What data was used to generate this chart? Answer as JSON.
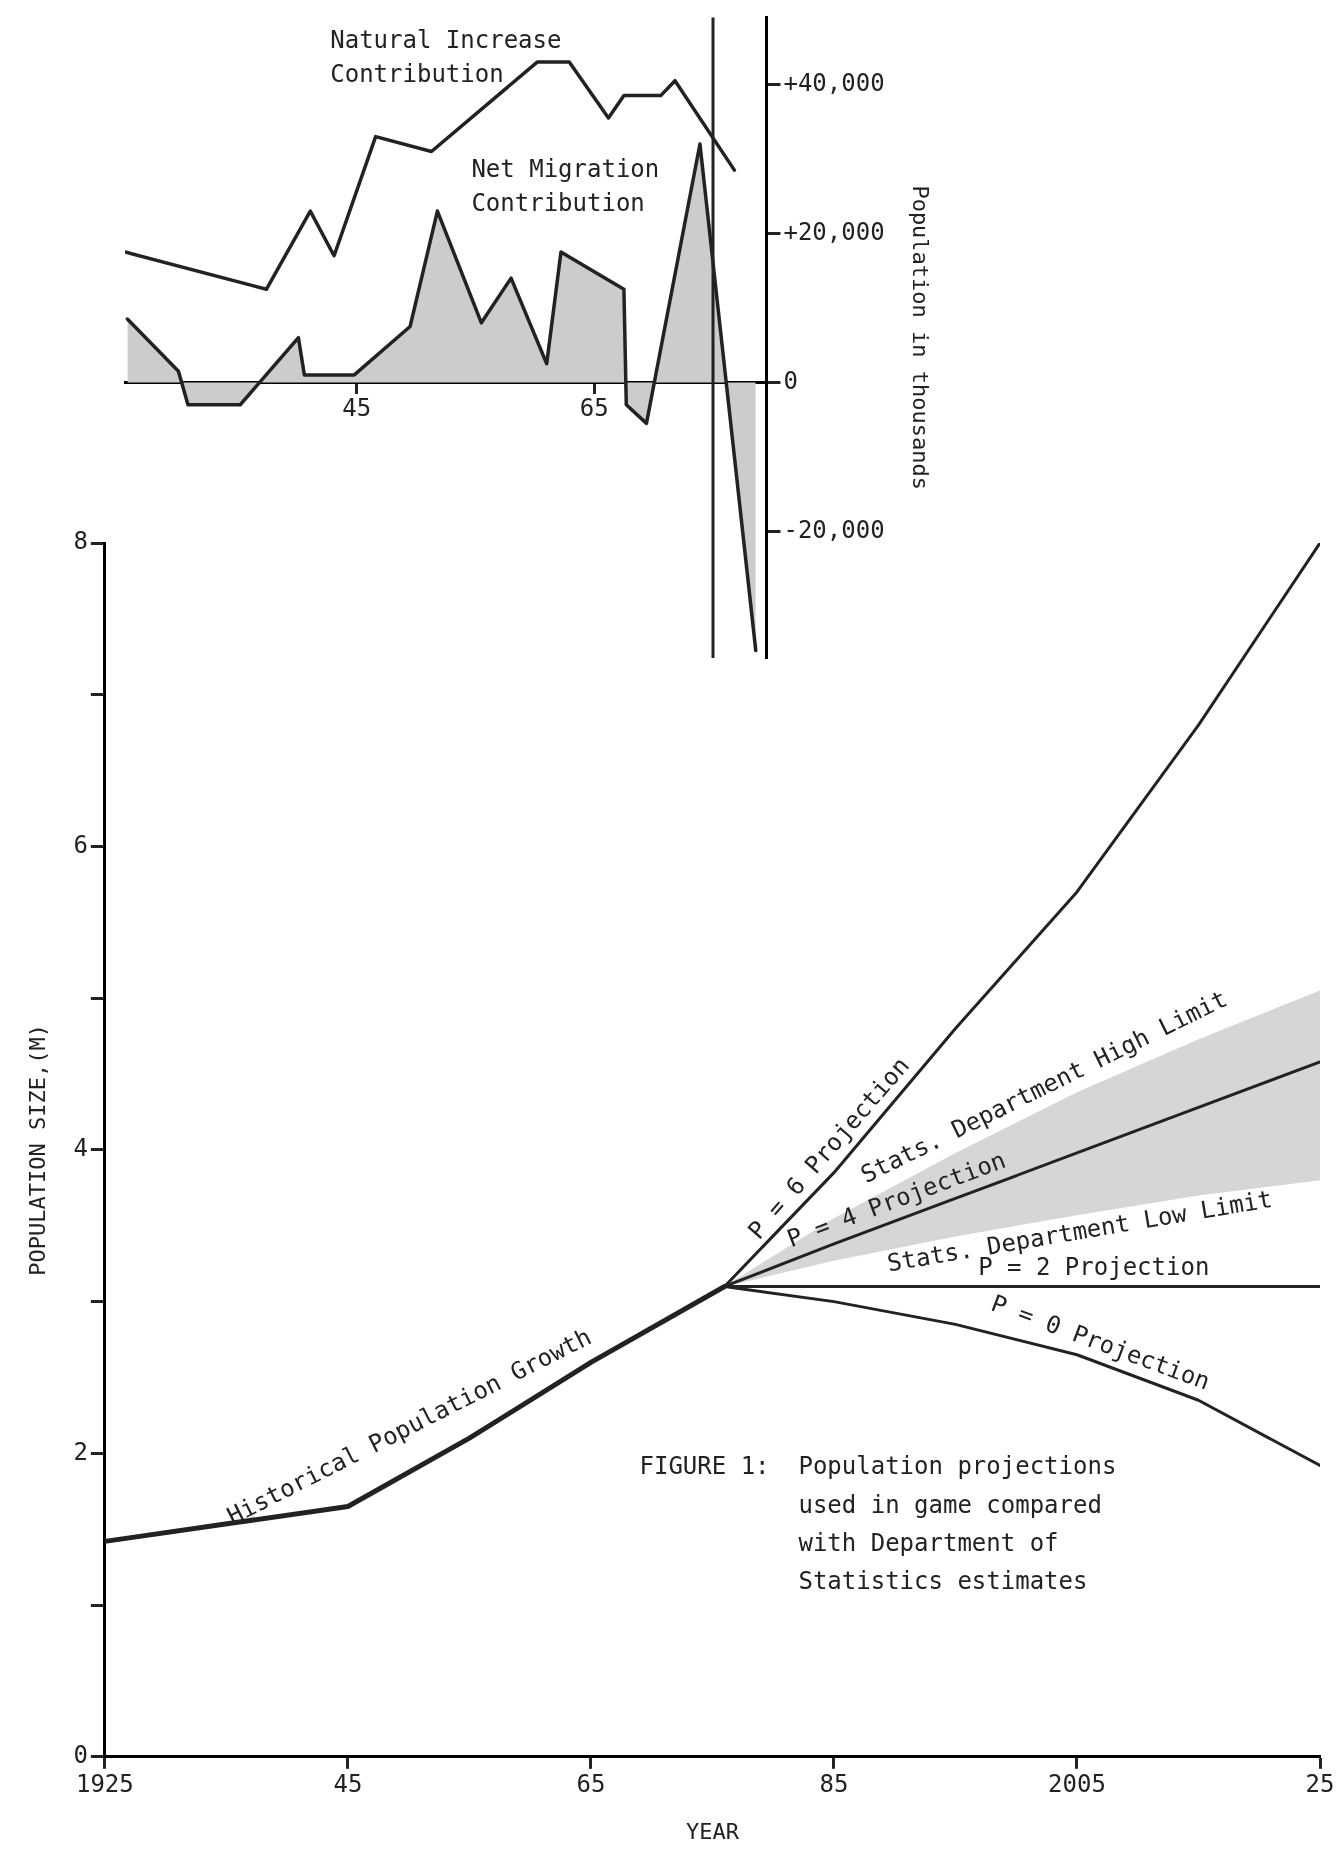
{
  "chart_data": [
    {
      "type": "line",
      "x": [
        1925.5,
        1937.4,
        1941.1,
        1943.1,
        1946.6,
        1951.3,
        1960.2,
        1962.9,
        1966.2,
        1967.5,
        1970.6,
        1971.8,
        1976.8
      ],
      "series": [
        {
          "name": "Natural Increase Contribution",
          "color": "#222222",
          "values": [
            17500,
            12500,
            23000,
            17000,
            33000,
            31000,
            43000,
            43000,
            35500,
            38500,
            38500,
            40500,
            28500
          ]
        },
        {
          "name": "Net Migration Contribution",
          "type": "area",
          "color": "#cccccc",
          "x": [
            1925.7,
            1930.0,
            1930.8,
            1935.2,
            1940.1,
            1940.6,
            1944.8,
            1949.5,
            1951.8,
            1955.5,
            1958.0,
            1961.0,
            1962.2,
            1967.5,
            1967.7,
            1969.4,
            1973.9,
            1978.6
          ],
          "values": [
            8500,
            1500,
            -3000,
            -3000,
            6000,
            1000,
            1000,
            7500,
            23000,
            8000,
            14000,
            2500,
            17500,
            12500,
            -3000,
            -5500,
            32000,
            -36000
          ]
        }
      ],
      "xlim": [
        1925.5,
        1979.5
      ],
      "xticks": [
        {
          "value": 1945,
          "label": "45"
        },
        {
          "value": 1965,
          "label": "65"
        }
      ],
      "ylim": [
        -37000,
        49000
      ],
      "yticks": [
        {
          "value": 40000,
          "label": "+40,000"
        },
        {
          "value": 20000,
          "label": "+20,000"
        },
        0,
        {
          "value": -20000,
          "label": "-20,000"
        }
      ],
      "ylabel": "Population in thousands",
      "ref_lines": [
        {
          "axis": "x",
          "value": 1975
        }
      ],
      "grid": false,
      "legend": false
    },
    {
      "type": "line",
      "x": [
        1976,
        1985,
        1995,
        2005,
        2015,
        2025
      ],
      "series": [
        {
          "name": "Historical Population Growth",
          "color": "#222222",
          "x": [
            1925,
            1945,
            1955,
            1965,
            1976
          ],
          "values": [
            1.42,
            1.65,
            2.1,
            2.6,
            3.1
          ]
        },
        {
          "name": "P = 6 Projection",
          "color": "#222222",
          "values": [
            3.1,
            3.85,
            4.8,
            5.7,
            6.8,
            8.0
          ]
        },
        {
          "name": "P = 4 Projection",
          "color": "#222222",
          "values": [
            3.1,
            3.38,
            3.68,
            3.98,
            4.28,
            4.58
          ],
          "lower": [
            3.1,
            3.27,
            3.43,
            3.57,
            3.7,
            3.8
          ],
          "upper": [
            3.1,
            3.55,
            3.98,
            4.38,
            4.73,
            5.05
          ]
        },
        {
          "name": "P = 2 Projection",
          "color": "#222222",
          "x": [
            1976,
            2025
          ],
          "values": [
            3.1,
            3.1
          ]
        },
        {
          "name": "P = 0 Projection",
          "color": "#222222",
          "values": [
            3.1,
            3.0,
            2.85,
            2.65,
            2.35,
            1.92
          ]
        }
      ],
      "xlim": [
        1925,
        2025
      ],
      "xticks": [
        1925,
        {
          "value": 1945,
          "label": "45"
        },
        {
          "value": 1965,
          "label": "65"
        },
        {
          "value": 1985,
          "label": "85"
        },
        2005,
        {
          "value": 2025,
          "label": "25"
        }
      ],
      "ylim": [
        0,
        8
      ],
      "yticks": [
        0,
        {
          "value": 1,
          "label": null
        },
        2,
        {
          "value": 3,
          "label": null
        },
        4,
        {
          "value": 5,
          "label": null
        },
        6,
        {
          "value": 7,
          "label": null
        },
        8
      ],
      "xlabel": "YEAR",
      "ylabel": "POPULATION SIZE,(M)",
      "annotations": [
        {
          "text": "Stats. Department High Limit",
          "x": 2003,
          "y": 4.3
        },
        {
          "text": "Stats. Department Low Limit",
          "x": 2005,
          "y": 3.57
        },
        "FIGURE 1:  Population projections used in game compared with Department of Statistics estimates"
      ],
      "grid": false,
      "legend": false
    }
  ]
}
